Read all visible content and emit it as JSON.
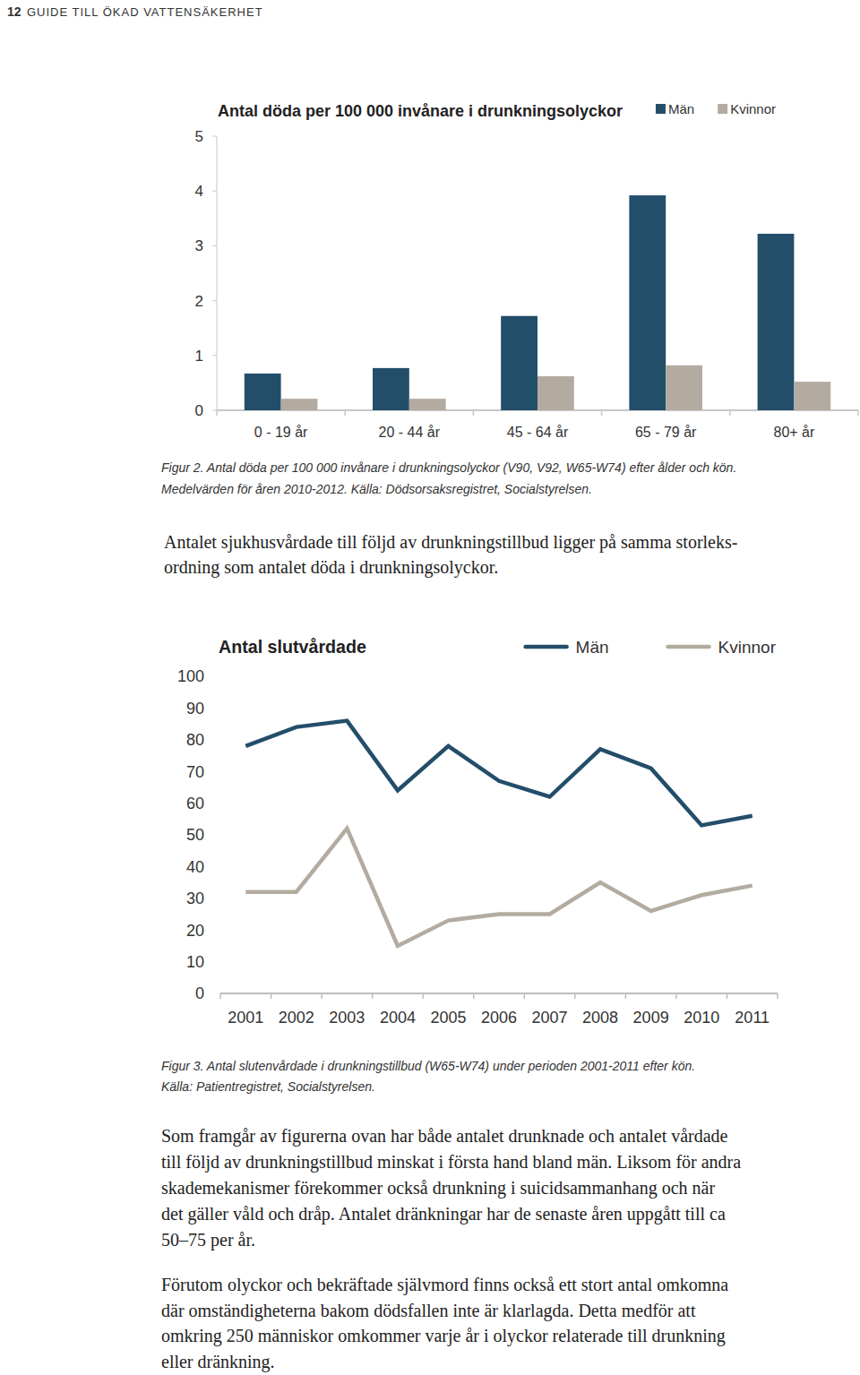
{
  "header": {
    "page_number": "12",
    "title": "GUIDE TILL ÖKAD VATTENSÄKERHET"
  },
  "chart_data": [
    {
      "type": "bar",
      "title": "Antal döda per 100 000 invånare i drunkningsolyckor",
      "categories": [
        "0 - 19 år",
        "20 - 44 år",
        "45 - 64 år",
        "65 - 79 år",
        "80+ år"
      ],
      "series": [
        {
          "name": "Män",
          "color": "#234e6a",
          "values": [
            0.67,
            0.77,
            1.72,
            3.92,
            3.22
          ]
        },
        {
          "name": "Kvinnor",
          "color": "#b3aba0",
          "values": [
            0.21,
            0.21,
            0.62,
            0.82,
            0.52
          ]
        }
      ],
      "ylim": [
        0,
        5
      ],
      "yticks": [
        0,
        1,
        2,
        3,
        4,
        5
      ],
      "grid": false,
      "legend": "top-right"
    },
    {
      "type": "line",
      "title": "Antal slutvårdade",
      "categories": [
        "2001",
        "2002",
        "2003",
        "2004",
        "2005",
        "2006",
        "2007",
        "2008",
        "2009",
        "2010",
        "2011"
      ],
      "series": [
        {
          "name": "Män",
          "color": "#234e6a",
          "values": [
            78,
            84,
            86,
            64,
            78,
            67,
            62,
            77,
            71,
            53,
            56
          ]
        },
        {
          "name": "Kvinnor",
          "color": "#b3aba0",
          "values": [
            32,
            32,
            52,
            15,
            23,
            25,
            25,
            35,
            26,
            31,
            34
          ]
        }
      ],
      "ylim": [
        0,
        100
      ],
      "yticks": [
        0,
        10,
        20,
        30,
        40,
        50,
        60,
        70,
        80,
        90,
        100
      ],
      "grid": false,
      "legend": "top-right"
    }
  ],
  "captions": [
    [
      "Figur 2. Antal döda per 100 000 invånare i drunkningsolyckor (V90, V92, W65-W74) efter ålder och kön.",
      "Medelvärden för åren 2010-2012. Källa: Dödsorsaksregistret, Socialstyrelsen."
    ],
    [
      "Figur 3. Antal slutenvårdade i drunkningstillbud (W65-W74) under perioden 2001-2011 efter kön.",
      "Källa: Patientregistret, Socialstyrelsen."
    ]
  ],
  "paragraphs": [
    [
      "Antalet sjukhusvårdade till följd av drunkningstillbud ligger på samma storleks-",
      "ordning som antalet döda i drunkningsolyckor."
    ],
    [
      "Som framgår av figurerna ovan har både antalet drunknade och antalet vårdade",
      "till följd av drunkningstillbud minskat i första hand bland män. Liksom för andra",
      "skademekanismer förekommer också drunkning i suicidsammanhang och när",
      "det gäller våld och dråp. Antalet dränkningar har de senaste åren uppgått till ca",
      "50–75 per år."
    ],
    [
      "Förutom olyckor och bekräftade självmord finns också ett stort antal omkomna",
      "där omständigheterna bakom dödsfallen inte är klarlagda. Detta medför att",
      "omkring 250 människor omkommer varje år i olyckor relaterade till drunkning",
      "eller dränkning."
    ]
  ]
}
